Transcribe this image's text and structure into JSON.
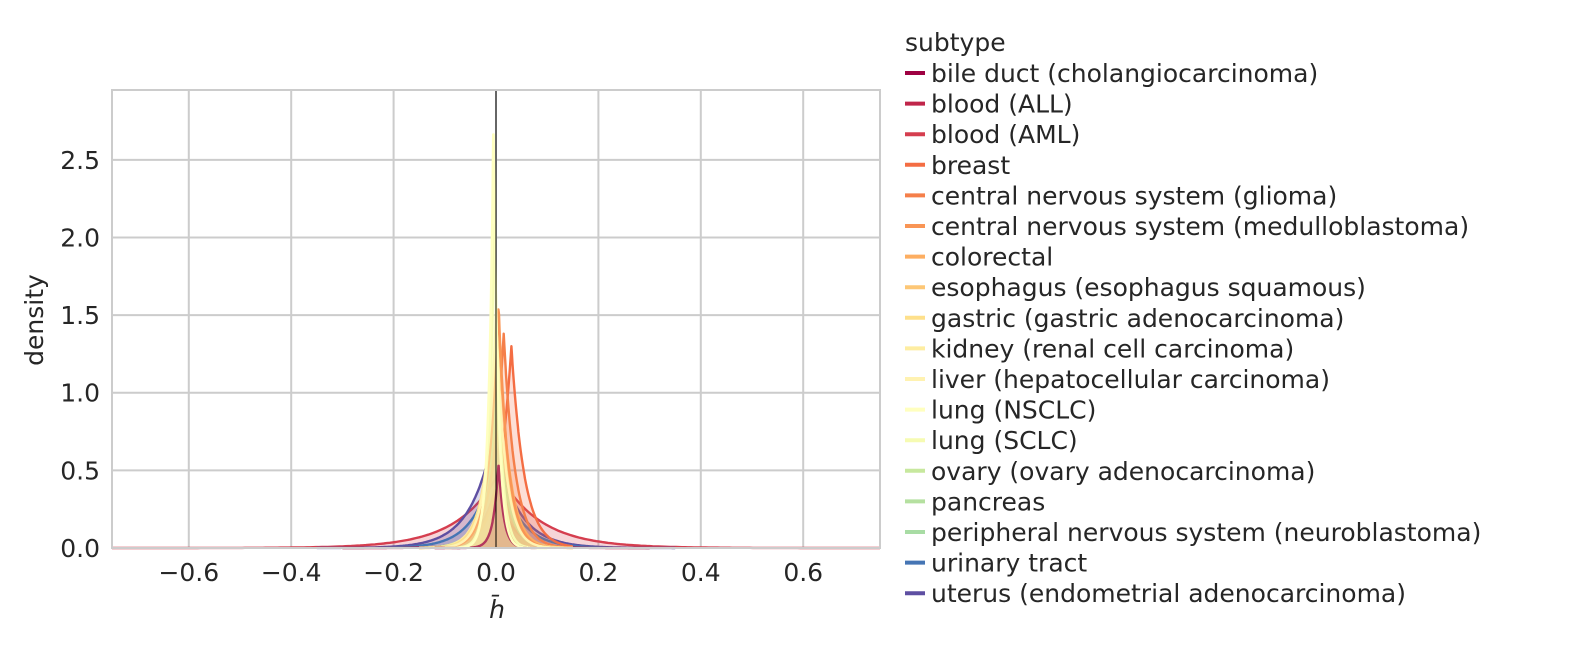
{
  "chart_data": {
    "type": "area",
    "xlabel": "h̄",
    "ylabel": "density",
    "xlim": [
      -0.75,
      0.75
    ],
    "ylim": [
      0,
      2.95
    ],
    "x_ticks": [
      -0.6,
      -0.4,
      -0.2,
      0.0,
      0.2,
      0.4,
      0.6
    ],
    "x_tick_labels": [
      "−0.6",
      "−0.4",
      "−0.2",
      "0.0",
      "0.2",
      "0.4",
      "0.6"
    ],
    "y_ticks": [
      0.0,
      0.5,
      1.0,
      1.5,
      2.0,
      2.5
    ],
    "y_tick_labels": [
      "0.0",
      "0.5",
      "1.0",
      "1.5",
      "2.0",
      "2.5"
    ],
    "grid": true,
    "reference_line_x": 0.0,
    "legend": {
      "title": "subtype",
      "placement": "right-outside"
    },
    "series": [
      {
        "name": "bile duct (cholangiocarcinoma)",
        "color": "#9e0142",
        "peak_x": 0.005,
        "peak_density": 0.55,
        "width": 0.01,
        "range": [
          -0.12,
          0.08
        ]
      },
      {
        "name": "blood (ALL)",
        "color": "#c0254a",
        "peak_x": 0.0,
        "peak_density": 0.4,
        "width": 0.03,
        "range": [
          -0.3,
          0.3
        ]
      },
      {
        "name": "blood (AML)",
        "color": "#d53e4f",
        "peak_x": 0.005,
        "peak_density": 0.48,
        "width": 0.08,
        "range": [
          -0.75,
          0.75
        ]
      },
      {
        "name": "breast",
        "color": "#f46d43",
        "peak_x": 0.03,
        "peak_density": 1.3,
        "width": 0.025,
        "range": [
          -0.15,
          0.15
        ]
      },
      {
        "name": "central nervous system (glioma)",
        "color": "#f57f4a",
        "peak_x": 0.015,
        "peak_density": 1.38,
        "width": 0.022,
        "range": [
          -0.15,
          0.15
        ]
      },
      {
        "name": "central nervous system (medulloblastoma)",
        "color": "#f99555",
        "peak_x": 0.005,
        "peak_density": 1.57,
        "width": 0.018,
        "range": [
          -0.15,
          0.15
        ]
      },
      {
        "name": "colorectal",
        "color": "#fdae61",
        "peak_x": 0.005,
        "peak_density": 1.45,
        "width": 0.02,
        "range": [
          -0.15,
          0.15
        ]
      },
      {
        "name": "esophagus (esophagus squamous)",
        "color": "#fdc776",
        "peak_x": 0.0,
        "peak_density": 1.3,
        "width": 0.02,
        "range": [
          -0.15,
          0.15
        ]
      },
      {
        "name": "gastric (gastric adenocarcinoma)",
        "color": "#fee08b",
        "peak_x": 0.0,
        "peak_density": 1.4,
        "width": 0.02,
        "range": [
          -0.15,
          0.15
        ]
      },
      {
        "name": "kidney (renal cell carcinoma)",
        "color": "#feeda1",
        "peak_x": 0.0,
        "peak_density": 1.2,
        "width": 0.022,
        "range": [
          -0.15,
          0.15
        ]
      },
      {
        "name": "liver (hepatocellular carcinoma)",
        "color": "#fff2b1",
        "peak_x": 0.0,
        "peak_density": 1.5,
        "width": 0.018,
        "range": [
          -0.15,
          0.15
        ]
      },
      {
        "name": "lung (NSCLC)",
        "color": "#ffffbf",
        "peak_x": -0.005,
        "peak_density": 2.78,
        "width": 0.009,
        "range": [
          -0.1,
          0.1
        ]
      },
      {
        "name": "lung (SCLC)",
        "color": "#f6fbb2",
        "peak_x": -0.003,
        "peak_density": 2.1,
        "width": 0.011,
        "range": [
          -0.1,
          0.1
        ]
      },
      {
        "name": "ovary (ovary adenocarcinoma)",
        "color": "#c7e89e",
        "peak_x": 0.0,
        "peak_density": 1.0,
        "width": 0.02,
        "range": [
          -0.15,
          0.15
        ]
      },
      {
        "name": "pancreas",
        "color": "#b5e0a0",
        "peak_x": 0.0,
        "peak_density": 0.9,
        "width": 0.022,
        "range": [
          -0.15,
          0.15
        ]
      },
      {
        "name": "peripheral nervous system (neuroblastoma)",
        "color": "#a8dca4",
        "peak_x": 0.0,
        "peak_density": 0.8,
        "width": 0.025,
        "range": [
          -0.15,
          0.15
        ]
      },
      {
        "name": "urinary tract",
        "color": "#4575b4",
        "peak_x": 0.0,
        "peak_density": 0.6,
        "width": 0.04,
        "range": [
          -0.3,
          0.3
        ]
      },
      {
        "name": "uterus (endometrial adenocarcinoma)",
        "color": "#5e4fa2",
        "peak_x": -0.005,
        "peak_density": 0.72,
        "width": 0.045,
        "range": [
          -0.35,
          0.35
        ]
      }
    ]
  }
}
